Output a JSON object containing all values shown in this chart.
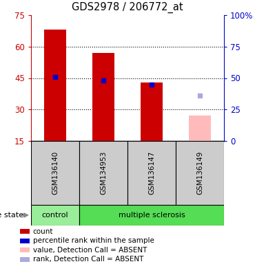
{
  "title": "GDS2978 / 206772_at",
  "samples": [
    "GSM136140",
    "GSM134953",
    "GSM136147",
    "GSM136149"
  ],
  "bar_values": [
    68,
    57,
    43,
    null
  ],
  "bar_color": "#cc0000",
  "absent_bar_values": [
    null,
    null,
    null,
    27
  ],
  "absent_bar_color": "#ffbbbb",
  "percentile_values": [
    51,
    48,
    45,
    null
  ],
  "absent_percentile_values": [
    null,
    null,
    null,
    36
  ],
  "percentile_color": "#0000cc",
  "absent_percentile_color": "#aaaadd",
  "ylim_left": [
    15,
    75
  ],
  "ylim_right": [
    0,
    100
  ],
  "yticks_left": [
    15,
    30,
    45,
    60,
    75
  ],
  "yticks_right": [
    0,
    25,
    50,
    75,
    100
  ],
  "ytick_labels_left": [
    "15",
    "30",
    "45",
    "60",
    "75"
  ],
  "ytick_labels_right": [
    "0",
    "25",
    "50",
    "75",
    "100%"
  ],
  "left_axis_color": "#cc0000",
  "right_axis_color": "#0000cc",
  "grid_yticks": [
    30,
    45,
    60
  ],
  "bar_width": 0.45,
  "control_color": "#99ee99",
  "ms_color": "#55dd55",
  "sample_box_color": "#cccccc",
  "legend_items": [
    {
      "label": "count",
      "color": "#cc0000"
    },
    {
      "label": "percentile rank within the sample",
      "color": "#0000cc"
    },
    {
      "label": "value, Detection Call = ABSENT",
      "color": "#ffbbbb"
    },
    {
      "label": "rank, Detection Call = ABSENT",
      "color": "#aaaadd"
    }
  ],
  "figsize": [
    3.7,
    3.84
  ],
  "dpi": 100
}
